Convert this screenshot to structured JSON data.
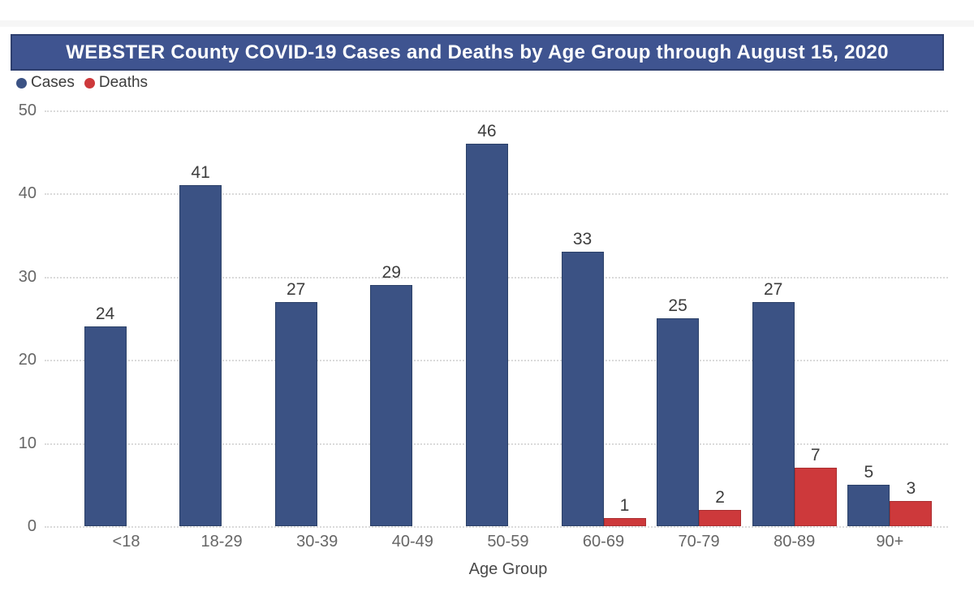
{
  "page": {
    "background": "#ffffff"
  },
  "banner": {
    "bg": "#3f5490",
    "border": "#2e3f6f",
    "text_color": "#ffffff"
  },
  "colors": {
    "grid": "#dadada",
    "tick_text": "#666666",
    "value_text": "#3d3d3d",
    "axis_title_text": "#4a4a4a",
    "legend_text": "#3c3c3c"
  },
  "chart_data": {
    "type": "bar",
    "title": "WEBSTER County COVID-19 Cases and Deaths by Age Group through August 15, 2020",
    "categories": [
      "<18",
      "18-29",
      "30-39",
      "40-49",
      "50-59",
      "60-69",
      "70-79",
      "80-89",
      "90+"
    ],
    "series": [
      {
        "name": "Cases",
        "color": "#3b5284",
        "border_color": "#2c4168",
        "values": [
          24,
          41,
          27,
          29,
          46,
          33,
          25,
          27,
          5
        ]
      },
      {
        "name": "Deaths",
        "color": "#cd393b",
        "border_color": "#aa2f31",
        "values": [
          0,
          0,
          0,
          0,
          0,
          1,
          2,
          7,
          3
        ]
      }
    ],
    "xlabel": "Age Group",
    "ylabel": "",
    "ylim": [
      0,
      50
    ],
    "yticks": [
      0,
      10,
      20,
      30,
      40,
      50
    ],
    "grid": "horizontal-dotted",
    "legend_position": "top-left",
    "value_labels": true,
    "zero_value_bars_hidden": true
  }
}
